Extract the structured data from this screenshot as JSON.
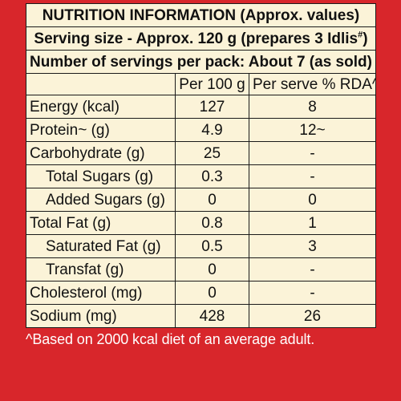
{
  "header": {
    "title": "NUTRITION INFORMATION (Approx. values)",
    "serving_size": "Serving size - Approx. 120 g (prepares 3 Idlis",
    "serving_size_mark": "#",
    "serving_size_close": ")",
    "servings_per_pack": "Number of servings per pack: About 7 (as sold)"
  },
  "columns": {
    "per_100g": "Per 100 g",
    "per_serve": "Per serve % RDA^"
  },
  "rows": [
    {
      "name": "Energy (kcal)",
      "per_100g": "127",
      "per_serve": "8",
      "sub": false
    },
    {
      "name": "Protein~ (g)",
      "per_100g": "4.9",
      "per_serve": "12~",
      "sub": false
    },
    {
      "name": "Carbohydrate (g)",
      "per_100g": "25",
      "per_serve": "-",
      "sub": false
    },
    {
      "name": "Total Sugars (g)",
      "per_100g": "0.3",
      "per_serve": "-",
      "sub": true
    },
    {
      "name": "Added Sugars (g)",
      "per_100g": "0",
      "per_serve": "0",
      "sub": true
    },
    {
      "name": "Total Fat (g)",
      "per_100g": "0.8",
      "per_serve": "1",
      "sub": false
    },
    {
      "name": "Saturated Fat (g)",
      "per_100g": "0.5",
      "per_serve": "3",
      "sub": true
    },
    {
      "name": "Transfat (g)",
      "per_100g": "0",
      "per_serve": "-",
      "sub": true
    },
    {
      "name": "Cholesterol (mg)",
      "per_100g": "0",
      "per_serve": "-",
      "sub": false
    },
    {
      "name": "Sodium (mg)",
      "per_100g": "428",
      "per_serve": "26",
      "sub": false
    }
  ],
  "footnote": "^Based on 2000 kcal diet of an average adult.",
  "colors": {
    "background": "#d8262b",
    "panel": "#fbf3d8",
    "text": "#111111"
  }
}
